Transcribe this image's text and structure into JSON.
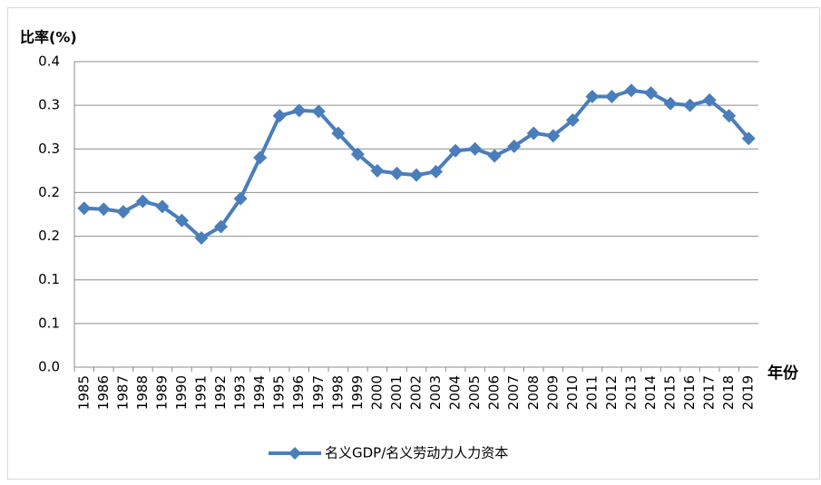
{
  "chart_data": {
    "type": "line",
    "y_label": "比率(%)",
    "x_label": "年份",
    "categories": [
      "1985",
      "1986",
      "1987",
      "1988",
      "1989",
      "1990",
      "1991",
      "1992",
      "1993",
      "1994",
      "1995",
      "1996",
      "1997",
      "1998",
      "1999",
      "2000",
      "2001",
      "2002",
      "2003",
      "2004",
      "2005",
      "2006",
      "2007",
      "2008",
      "2009",
      "2010",
      "2011",
      "2012",
      "2013",
      "2014",
      "2015",
      "2016",
      "2017",
      "2018",
      "2019"
    ],
    "series": [
      {
        "name": "名义GDP/名义劳动力人力资本",
        "color": "#4a7ebb",
        "values": [
          0.182,
          0.181,
          0.178,
          0.19,
          0.184,
          0.168,
          0.148,
          0.161,
          0.193,
          0.24,
          0.288,
          0.294,
          0.293,
          0.268,
          0.244,
          0.225,
          0.222,
          0.22,
          0.224,
          0.248,
          0.25,
          0.242,
          0.253,
          0.268,
          0.265,
          0.283,
          0.31,
          0.31,
          0.317,
          0.314,
          0.302,
          0.3,
          0.306,
          0.288,
          0.262
        ]
      }
    ],
    "ylim": [
      0,
      0.35
    ],
    "yticks": [
      {
        "value": 0,
        "label": "0.0"
      },
      {
        "value": 0.05,
        "label": "0.1"
      },
      {
        "value": 0.1,
        "label": "0.1"
      },
      {
        "value": 0.15,
        "label": "0.2"
      },
      {
        "value": 0.2,
        "label": "0.2"
      },
      {
        "value": 0.25,
        "label": "0.3"
      },
      {
        "value": 0.3,
        "label": "0.3"
      },
      {
        "value": 0.35,
        "label": "0.4"
      }
    ],
    "grid": true,
    "legend": "bottom"
  }
}
